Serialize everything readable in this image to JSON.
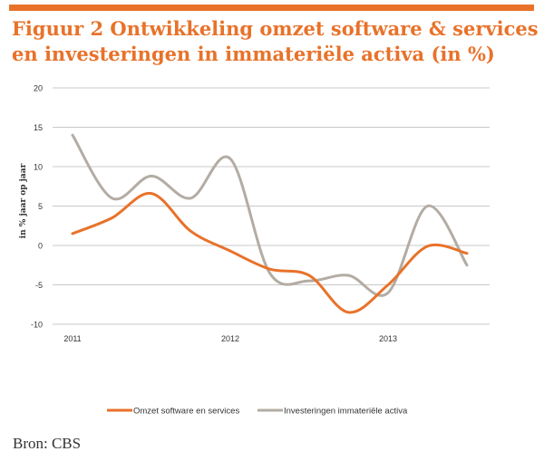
{
  "title": {
    "line1": "Figuur 2 Ontwikkeling omzet software & services",
    "line2": "en investeringen in immateriële activa (in %)"
  },
  "source": "Bron: CBS",
  "colors": {
    "accent": "#e8722a",
    "series_omzet": "#e8722a",
    "series_investeringen": "#b3aca3",
    "grid": "#c8c8c8",
    "text": "#333333"
  },
  "chart_data": {
    "type": "line",
    "ylabel": "in % jaar op jaar",
    "xlabel": "",
    "ylim": [
      -10,
      20
    ],
    "yticks": [
      20,
      15,
      10,
      5,
      0,
      -5,
      -10
    ],
    "xlim": [
      2011,
      2013.75
    ],
    "xticks": [
      {
        "value": 2011,
        "label": "2011"
      },
      {
        "value": 2012,
        "label": "2012"
      },
      {
        "value": 2013,
        "label": "2013"
      }
    ],
    "grid": true,
    "legend_position": "bottom",
    "series": [
      {
        "name": "Omzet software en services",
        "color": "#e8722a",
        "x": [
          2011,
          2011.25,
          2011.5,
          2011.75,
          2012,
          2012.25,
          2012.5,
          2012.75,
          2013,
          2013.25,
          2013.5
        ],
        "values": [
          1.5,
          3.5,
          6.6,
          1.8,
          -0.7,
          -3.0,
          -3.8,
          -8.5,
          -5.0,
          -0.1,
          -1.0
        ]
      },
      {
        "name": "Investeringen immateriële activa",
        "color": "#b3aca3",
        "x": [
          2011,
          2011.25,
          2011.5,
          2011.75,
          2012,
          2012.25,
          2012.5,
          2012.75,
          2013,
          2013.25,
          2013.5
        ],
        "values": [
          14.0,
          6.0,
          8.8,
          6.0,
          11.0,
          -3.5,
          -4.5,
          -3.8,
          -6.0,
          5.0,
          -2.5
        ]
      }
    ]
  }
}
